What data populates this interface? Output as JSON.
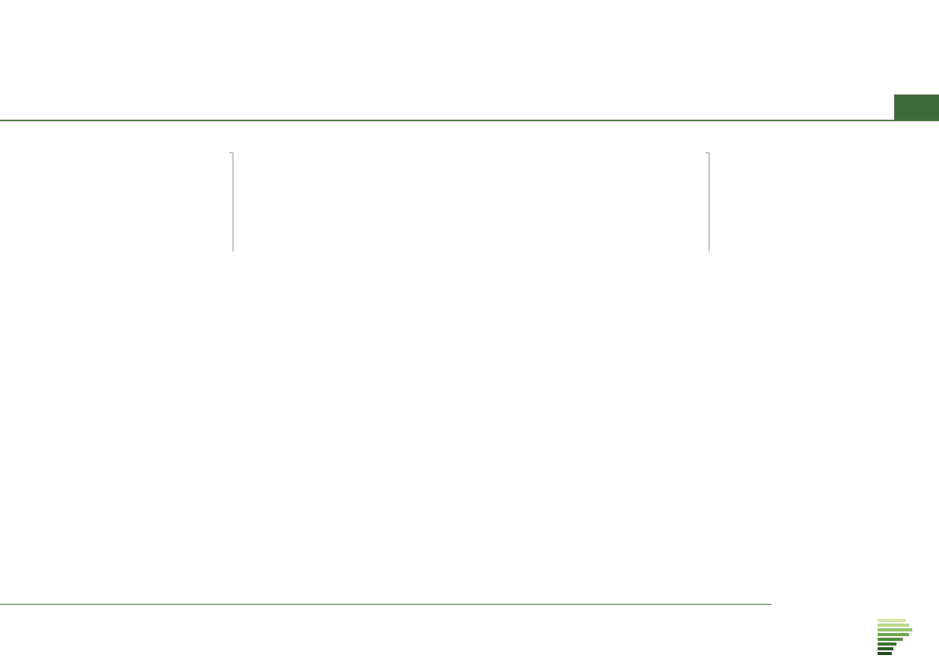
{
  "header": {
    "title": "",
    "subtitle": "",
    "page_number": ""
  },
  "footer": {
    "base_label": "",
    "base_text": "",
    "base_count": "",
    "question": ""
  },
  "colors": {
    "accent": "#3e6b3a",
    "accent_light": "#8fb98a",
    "rule": "#4d7a46",
    "badge": "#3e6b3a"
  },
  "chart_data": [
    {
      "type": "bar",
      "orientation": "horizontal",
      "categories": [],
      "values": [],
      "value_labels": [],
      "xlim": [
        0,
        100
      ]
    },
    {
      "type": "bar",
      "orientation": "horizontal",
      "categories": [],
      "values": [],
      "value_labels": [],
      "xlim": [
        0,
        100
      ]
    }
  ]
}
